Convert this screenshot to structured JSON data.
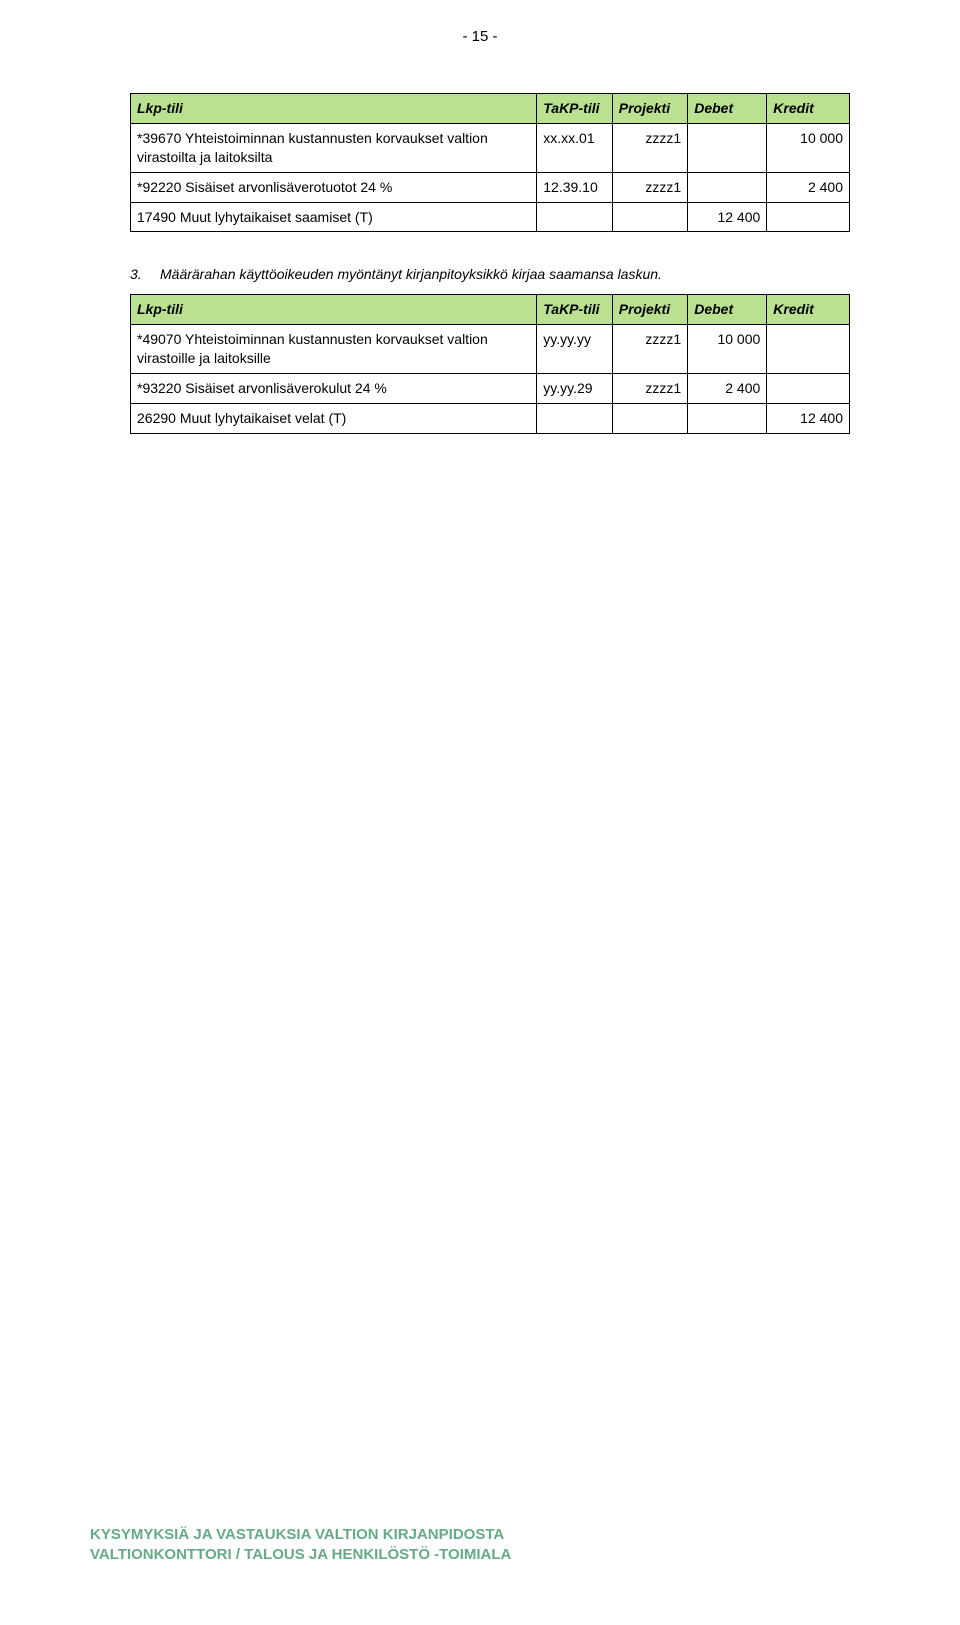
{
  "page_number": "- 15 -",
  "table1": {
    "headers": [
      "Lkp-tili",
      "TaKP-tili",
      "Projekti",
      "Debet",
      "Kredit"
    ],
    "rows": [
      {
        "desc": "*39670 Yhteistoiminnan kustannusten korvaukset valtion virastoilta ja laitoksilta",
        "takp": "xx.xx.01",
        "proj": "zzzz1",
        "debet": "",
        "kredit": "10 000"
      },
      {
        "desc": "*92220 Sisäiset arvonlisäverotuotot 24 %",
        "takp": "12.39.10",
        "proj": "zzzz1",
        "debet": "",
        "kredit": "2 400"
      },
      {
        "desc": "17490 Muut lyhytaikaiset saamiset (T)",
        "takp": "",
        "proj": "",
        "debet": "12 400",
        "kredit": ""
      }
    ]
  },
  "paragraph": {
    "num": "3.",
    "text": "Määrärahan käyttöoikeuden myöntänyt kirjanpitoyksikkö kirjaa saamansa laskun."
  },
  "table2": {
    "headers": [
      "Lkp-tili",
      "TaKP-tili",
      "Projekti",
      "Debet",
      "Kredit"
    ],
    "rows": [
      {
        "desc": "*49070 Yhteistoiminnan kustannusten korvaukset valtion virastoille ja laitoksille",
        "takp": "yy.yy.yy",
        "proj": "zzzz1",
        "debet": "10 000",
        "kredit": ""
      },
      {
        "desc": "*93220 Sisäiset arvonlisäverokulut 24 %",
        "takp": "yy.yy.29",
        "proj": "zzzz1",
        "debet": "2 400",
        "kredit": ""
      },
      {
        "desc": "26290 Muut lyhytaikaiset velat (T)",
        "takp": "",
        "proj": "",
        "debet": "",
        "kredit": "12 400"
      }
    ]
  },
  "footer": {
    "line1": "KYSYMYKSIÄ JA VASTAUKSIA VALTION KIRJANPIDOSTA",
    "line2": "VALTIONKONTTORI / TALOUS JA HENKILÖSTÖ -TOIMIALA"
  },
  "colors": {
    "header_bg": "#bae18f",
    "footer_text": "#66aa88",
    "border": "#000000",
    "page_bg": "#ffffff"
  }
}
